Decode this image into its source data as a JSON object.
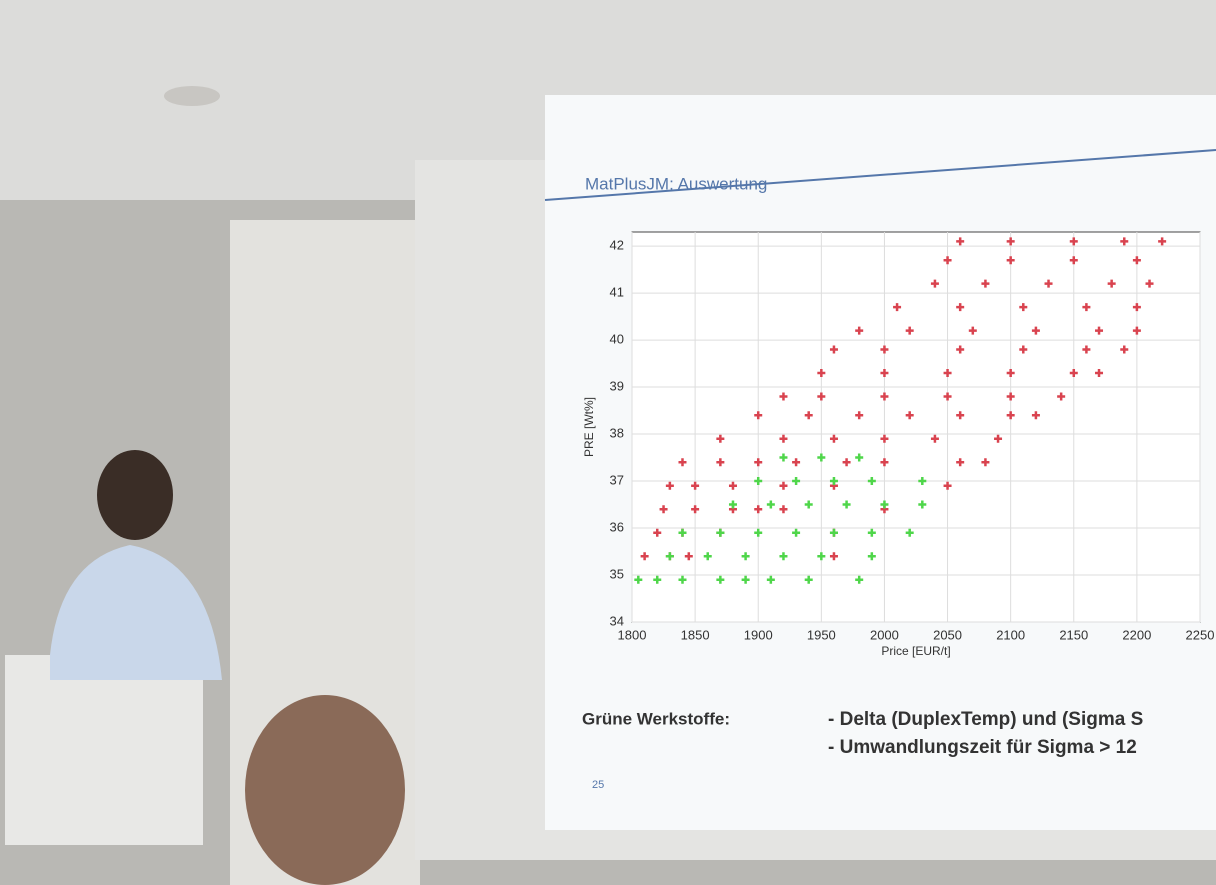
{
  "slide": {
    "title": "MatPlusJM: Auswertung",
    "page_number": "25",
    "notes": {
      "label": "Grüne Werkstoffe:",
      "lines": [
        "- Delta (DuplexTemp) und (Sigma S",
        "- Umwandlungszeit für Sigma > 12"
      ]
    }
  },
  "chart_data": {
    "type": "scatter",
    "xlabel": "Price [EUR/t]",
    "ylabel": "PRE [Wt%]",
    "xlim": [
      1800,
      2250
    ],
    "ylim": [
      34,
      42.3
    ],
    "xticks": [
      1800,
      1850,
      1900,
      1950,
      2000,
      2050,
      2100,
      2150,
      2200,
      2250
    ],
    "yticks": [
      34,
      35,
      36,
      37,
      38,
      39,
      40,
      41,
      42
    ],
    "grid": true,
    "series": [
      {
        "color": "#d9434f",
        "x": [
          1810,
          1830,
          1845,
          1960,
          1820,
          1840,
          1870,
          1960,
          1825,
          1850,
          1880,
          1900,
          1920,
          2000,
          1830,
          1850,
          1880,
          1920,
          1960,
          2050,
          1840,
          1870,
          1900,
          1930,
          1970,
          2000,
          2060,
          2080,
          1870,
          1920,
          1960,
          2000,
          2040,
          2090,
          1900,
          1940,
          1980,
          2020,
          2060,
          2100,
          2120,
          1920,
          1950,
          2000,
          2050,
          2100,
          2140,
          1950,
          2000,
          2050,
          2100,
          2150,
          2170,
          1960,
          2000,
          2060,
          2110,
          2160,
          2190,
          1980,
          2020,
          2070,
          2120,
          2170,
          2200,
          2010,
          2060,
          2110,
          2160,
          2200,
          2040,
          2080,
          2130,
          2180,
          2210,
          2050,
          2100,
          2150,
          2200,
          2060,
          2100,
          2150,
          2190,
          2220
        ],
        "values": [
          35.4,
          35.4,
          35.4,
          35.4,
          35.9,
          35.9,
          35.9,
          35.9,
          36.4,
          36.4,
          36.4,
          36.4,
          36.4,
          36.4,
          36.9,
          36.9,
          36.9,
          36.9,
          36.9,
          36.9,
          37.4,
          37.4,
          37.4,
          37.4,
          37.4,
          37.4,
          37.4,
          37.4,
          37.9,
          37.9,
          37.9,
          37.9,
          37.9,
          37.9,
          38.4,
          38.4,
          38.4,
          38.4,
          38.4,
          38.4,
          38.4,
          38.8,
          38.8,
          38.8,
          38.8,
          38.8,
          38.8,
          39.3,
          39.3,
          39.3,
          39.3,
          39.3,
          39.3,
          39.8,
          39.8,
          39.8,
          39.8,
          39.8,
          39.8,
          40.2,
          40.2,
          40.2,
          40.2,
          40.2,
          40.2,
          40.7,
          40.7,
          40.7,
          40.7,
          40.7,
          41.2,
          41.2,
          41.2,
          41.2,
          41.2,
          41.7,
          41.7,
          41.7,
          41.7,
          42.1,
          42.1,
          42.1,
          42.1,
          42.1
        ]
      },
      {
        "color": "#4fd64a",
        "x": [
          1805,
          1820,
          1840,
          1870,
          1890,
          1910,
          1940,
          1980,
          1830,
          1860,
          1890,
          1920,
          1950,
          1990,
          1840,
          1870,
          1900,
          1930,
          1960,
          1990,
          2020,
          1880,
          1910,
          1940,
          1970,
          2000,
          2030,
          1900,
          1930,
          1960,
          1990,
          2030,
          1920,
          1950,
          1980
        ],
        "values": [
          34.9,
          34.9,
          34.9,
          34.9,
          34.9,
          34.9,
          34.9,
          34.9,
          35.4,
          35.4,
          35.4,
          35.4,
          35.4,
          35.4,
          35.9,
          35.9,
          35.9,
          35.9,
          35.9,
          35.9,
          35.9,
          36.5,
          36.5,
          36.5,
          36.5,
          36.5,
          36.5,
          37.0,
          37.0,
          37.0,
          37.0,
          37.0,
          37.5,
          37.5,
          37.5
        ]
      }
    ]
  }
}
